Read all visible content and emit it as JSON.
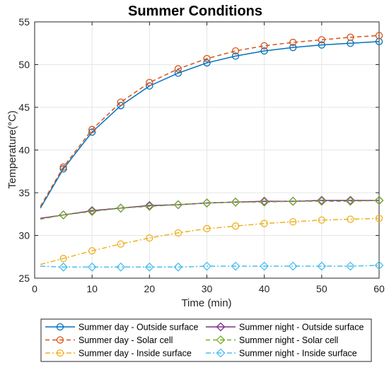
{
  "chart_data": {
    "type": "line",
    "title": "Summer Conditions",
    "xlabel": "Time (min)",
    "ylabel": "Temperature(°C)",
    "xlim": [
      0,
      60
    ],
    "ylim": [
      25,
      55
    ],
    "x_ticks": [
      0,
      10,
      20,
      30,
      40,
      50,
      60
    ],
    "y_ticks": [
      25,
      30,
      35,
      40,
      45,
      50,
      55
    ],
    "grid": true,
    "legend_position": "bottom",
    "legend_columns": 2,
    "x": [
      1,
      5,
      10,
      15,
      20,
      25,
      30,
      35,
      40,
      45,
      50,
      55,
      60
    ],
    "series": [
      {
        "name": "Summer day - Outside surface",
        "color": "#0072BD",
        "line_style": "solid",
        "marker": "circle",
        "values": [
          33.2,
          37.8,
          42.1,
          45.2,
          47.5,
          49.0,
          50.2,
          51.0,
          51.6,
          52.0,
          52.3,
          52.5,
          52.7
        ]
      },
      {
        "name": "Summer day - Solar cell",
        "color": "#D95319",
        "line_style": "dashed",
        "marker": "circle",
        "values": [
          33.4,
          38.0,
          42.4,
          45.6,
          47.9,
          49.5,
          50.7,
          51.6,
          52.2,
          52.6,
          52.9,
          53.2,
          53.4
        ]
      },
      {
        "name": "Summer day - Inside surface",
        "color": "#EDB120",
        "line_style": "dashdot",
        "marker": "circle",
        "values": [
          26.6,
          27.3,
          28.2,
          29.0,
          29.7,
          30.3,
          30.8,
          31.1,
          31.4,
          31.6,
          31.8,
          31.9,
          32.0
        ]
      },
      {
        "name": "Summer night - Outside surface",
        "color": "#7E2F8E",
        "line_style": "solid",
        "marker": "diamond",
        "values": [
          32.0,
          32.4,
          32.9,
          33.2,
          33.5,
          33.6,
          33.8,
          33.9,
          34.0,
          34.0,
          34.1,
          34.1,
          34.1
        ]
      },
      {
        "name": "Summer night - Solar cell",
        "color": "#77AC30",
        "line_style": "dashed",
        "marker": "diamond",
        "values": [
          31.9,
          32.4,
          32.8,
          33.2,
          33.4,
          33.6,
          33.8,
          33.9,
          33.9,
          34.0,
          34.0,
          34.0,
          34.1
        ]
      },
      {
        "name": "Summer night - Inside surface",
        "color": "#4DBEEE",
        "line_style": "dashdot",
        "marker": "diamond",
        "values": [
          26.4,
          26.3,
          26.3,
          26.3,
          26.3,
          26.3,
          26.4,
          26.4,
          26.4,
          26.4,
          26.4,
          26.4,
          26.5
        ]
      }
    ]
  }
}
